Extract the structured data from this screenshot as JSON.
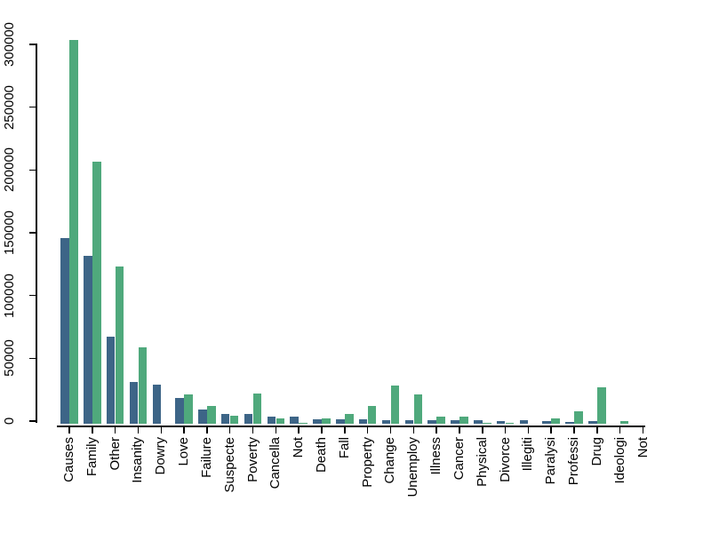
{
  "chart_data": {
    "type": "bar",
    "title": "",
    "xlabel": "",
    "ylabel": "",
    "ylim": [
      0,
      300000
    ],
    "yticks": [
      0,
      50000,
      100000,
      150000,
      200000,
      250000,
      300000
    ],
    "grid": false,
    "legend": "none",
    "categories": [
      "Causes",
      "Family",
      "Other",
      "Insanity",
      "Dowry",
      "Love",
      "Failure",
      "Suspecte",
      "Poverty",
      "Cancella",
      "Not",
      "Death",
      "Fall",
      "Property",
      "Change",
      "Unemploy",
      "Illness",
      "Cancer",
      "Physical",
      "Divorce",
      "Illegiti",
      "Paralysi",
      "Professi",
      "Drug",
      "Ideologi",
      "Not"
    ],
    "series": [
      {
        "name": "series-blue",
        "color": "#3D6587",
        "values": [
          148000,
          134000,
          69000,
          33000,
          31000,
          20500,
          11500,
          7500,
          8000,
          6000,
          5500,
          3500,
          3500,
          3500,
          3000,
          3000,
          2500,
          3000,
          3000,
          2000,
          2500,
          2000,
          1500,
          2000,
          0,
          0
        ]
      },
      {
        "name": "series-green",
        "color": "#4FA97C",
        "values": [
          305500,
          208500,
          125500,
          61000,
          0,
          23500,
          14500,
          6500,
          24000,
          4000,
          1000,
          4500,
          7500,
          14000,
          30500,
          23500,
          5500,
          5500,
          1000,
          500,
          0,
          4500,
          10000,
          29000,
          2000,
          0
        ]
      }
    ]
  }
}
